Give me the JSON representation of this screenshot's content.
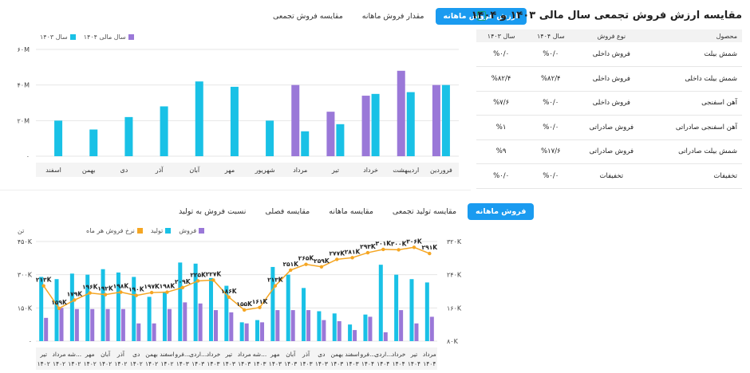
{
  "top": {
    "tabs": [
      "ارزش فروش ماهانه",
      "مقدار فروش ماهانه",
      "مقایسه فروش تجمعی"
    ],
    "active_tab": 0,
    "legend": [
      "سال مالی ۱۴۰۴",
      "سال ۱۴۰۳"
    ]
  },
  "bottom": {
    "tabs": [
      "فروش ماهانه",
      "مقایسه تولید تجمعی",
      "مقایسه ماهانه",
      "مقایسه فصلی",
      "نسبت فروش به تولید"
    ],
    "active_tab": 0,
    "legend": [
      "فروش",
      "تولید",
      "نرخ فروش هر ماه"
    ],
    "unit_label": "تن"
  },
  "panel": {
    "title": "مقایسه ارزش فروش تجمعی سال مالی ۱۴۰۳ و ۱۴۰۴",
    "headers": [
      "محصول",
      "نوع فروش",
      "سال ۱۴۰۴",
      "سال ۱۴۰۳"
    ],
    "rows": [
      [
        "شمش بیلت",
        "فروش داخلی",
        "%۰/۰",
        "%۰/۰"
      ],
      [
        "شمش بیلت داخلی",
        "فروش داخلی",
        "%۸۲/۴",
        "%۸۲/۴"
      ],
      [
        "آهن اسفنجی",
        "فروش داخلی",
        "%۰/۰",
        "%۷/۶"
      ],
      [
        "آهن اسفنجی صادراتی",
        "فروش صادراتی",
        "%۰/۰",
        "%۱"
      ],
      [
        "شمش بیلت صادراتی",
        "فروش صادراتی",
        "%۱۷/۶",
        "%۹"
      ],
      [
        "تخفیفات",
        "تخفیفات",
        "%۰/۰",
        "%۰/۰"
      ]
    ]
  },
  "colors": {
    "accent": "#1a9bf0",
    "cyan": "#19c1e6",
    "purple": "#9a78d8",
    "orange": "#f5a623",
    "text": "#222222",
    "grid": "#e6e6e6"
  },
  "chart_data": [
    {
      "type": "bar",
      "categories": [
        "فروردین",
        "اردیبهشت",
        "خرداد",
        "تیر",
        "مرداد",
        "شهریور",
        "مهر",
        "آبان",
        "آذر",
        "دی",
        "بهمن",
        "اسفند"
      ],
      "series": [
        {
          "name": "سال ۱۴۰۳",
          "values": [
            40,
            36,
            35,
            18,
            14,
            20,
            39,
            42,
            28,
            22,
            15,
            20
          ]
        },
        {
          "name": "سال مالی ۱۴۰۴",
          "values": [
            40,
            48,
            34,
            25,
            40,
            0,
            0,
            0,
            0,
            0,
            0,
            0
          ]
        }
      ],
      "y_ticks": [
        "۰",
        "۲۰M",
        "۴۰M",
        "۶۰M"
      ],
      "ylim": [
        0,
        60
      ]
    },
    {
      "type": "bar+line",
      "categories": [
        "تیر ۱۴۰۲",
        "مرداد ۱۴۰۲",
        "شه... ۱۴۰۲",
        "مهر ۱۴۰۲",
        "آبان ۱۴۰۲",
        "آذر ۱۴۰۲",
        "دی ۱۴۰۲",
        "بهمن ۱۴۰۲",
        "اسفند ۱۴۰۲",
        "فرو... ۱۴۰۳",
        "اردی... ۱۴۰۳",
        "خرداد ۱۴۰۳",
        "تیر ۱۴۰۳",
        "مرداد ۱۴۰۳",
        "شه... ۱۴۰۳",
        "مهر ۱۴۰۳",
        "آبان ۱۴۰۳",
        "آذر ۱۴۰۳",
        "دی ۱۴۰۳",
        "بهمن ۱۴۰۳",
        "اسفند ۱۴۰۳",
        "فرو... ۱۴۰۴",
        "اردی... ۱۴۰۴",
        "خرداد ۱۴۰۴",
        "تیر ۱۴۰۴",
        "مرداد ۱۴۰۴"
      ],
      "series": [
        {
          "name": "تولید",
          "axis": "left",
          "values": [
            290,
            280,
            305,
            300,
            325,
            310,
            290,
            200,
            220,
            355,
            350,
            285,
            250,
            85,
            95,
            335,
            300,
            240,
            135,
            125,
            75,
            120,
            345,
            300,
            280,
            265
          ]
        },
        {
          "name": "فروش",
          "axis": "left",
          "values": [
            105,
            150,
            145,
            145,
            145,
            145,
            80,
            80,
            145,
            175,
            170,
            140,
            130,
            80,
            85,
            140,
            140,
            140,
            95,
            90,
            50,
            110,
            40,
            140,
            80,
            110
          ]
        },
        {
          "name": "نرخ فروش هر ماه",
          "axis": "right",
          "values": [
            213,
            159,
            179,
            196,
            192,
            198,
            190,
            197,
            198,
            209,
            225,
            227,
            186,
            155,
            161,
            213,
            251,
            265,
            259,
            277,
            281,
            293,
            301,
            300,
            306,
            291
          ]
        }
      ],
      "rate_labels": [
        "۲۱۳K",
        "۱۵۹K",
        "۱۷۹K",
        "۱۹۶K",
        "۱۹۲K",
        "۱۹۸K",
        "۱۹۰K",
        "۱۹۷K",
        "۱۹۸K",
        "۲۰۹K",
        "۲۲۵K",
        "۲۲۷K",
        "۱۸۶K",
        "۱۵۵K",
        "۱۶۱K",
        "۲۱۳K",
        "۲۵۱K",
        "۲۶۵K",
        "۲۵۹K",
        "۲۷۷K",
        "۲۸۱K",
        "۲۹۳K",
        "۳۰۱K",
        "۳۰۰K",
        "۳۰۶K",
        "۲۹۱K"
      ],
      "y_ticks_left": [
        "۰",
        "۱۵۰K",
        "۳۰۰K",
        "۴۵۰K"
      ],
      "ylim_left": [
        0,
        450
      ],
      "y_ticks_right": [
        "۸۰K",
        "۱۶۰K",
        "۲۴۰K",
        "۳۲۰K"
      ],
      "ylim_right": [
        80,
        320
      ]
    }
  ]
}
